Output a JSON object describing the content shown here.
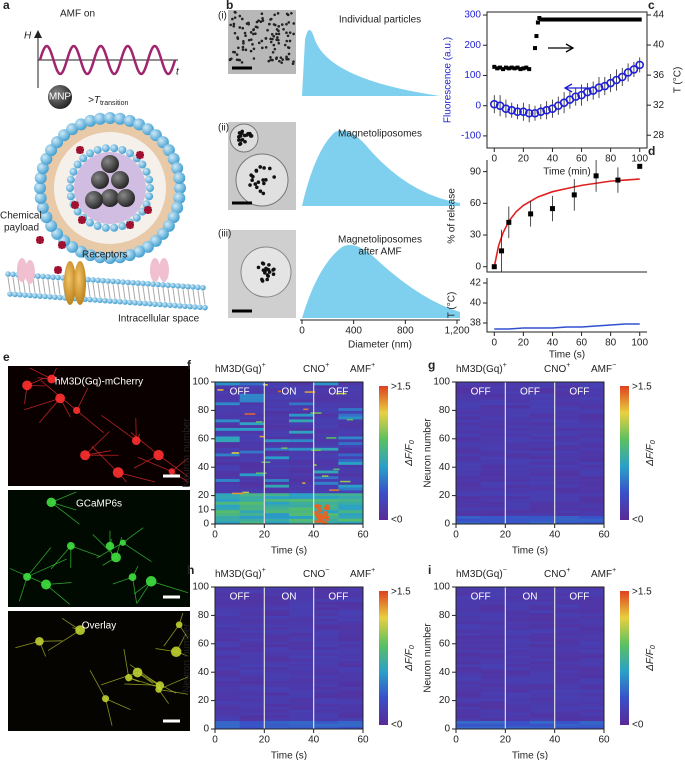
{
  "a": {
    "label": "a",
    "amf": "AMF on",
    "h": "H",
    "t": "t",
    "mnp": "MNP",
    "transition": ">T",
    "transition_sub": "transition",
    "payload": [
      "Chemical",
      "payload"
    ],
    "receptors": "Receptors",
    "intracellular": "Intracellular space"
  },
  "b": {
    "label": "b",
    "xlabel": "Diameter (nm)",
    "xlim": [
      0,
      1200
    ],
    "xticks": [
      0,
      400,
      800,
      {
        "value": 1200,
        "label": "1,200"
      }
    ],
    "rows": [
      {
        "index": "(i)",
        "caption": [
          "Individual particles"
        ]
      },
      {
        "index": "(ii)",
        "caption": [
          "Magnetoliposomes"
        ]
      },
      {
        "index": "(iii)",
        "caption": [
          "Magnetoliposomes",
          "after AMF"
        ]
      }
    ]
  },
  "c": {
    "label": "c",
    "type": "scatter",
    "xlabel": "Time (min)",
    "ylabel": "Fluorescence (a.u.)",
    "y2label": "T (°C)",
    "xlim": [
      -5,
      105
    ],
    "xticks": [
      0,
      20,
      40,
      60,
      80,
      100
    ],
    "ylim": [
      -140,
      310
    ],
    "yticks": [
      -100,
      0,
      100,
      200,
      300
    ],
    "y2lim": [
      26.3,
      44.4
    ],
    "y2ticks": [
      28,
      32,
      36,
      40,
      44
    ],
    "fluorescence": {
      "color": "#1f1fd6",
      "x": [
        0,
        4,
        8,
        12,
        16,
        20,
        24,
        28,
        32,
        36,
        40,
        44,
        48,
        52,
        56,
        60,
        64,
        68,
        72,
        76,
        80,
        84,
        88,
        92,
        96,
        100
      ],
      "values": [
        5,
        0,
        -10,
        -15,
        -20,
        -20,
        -25,
        -25,
        -20,
        -15,
        -10,
        0,
        10,
        20,
        30,
        35,
        45,
        50,
        60,
        65,
        75,
        85,
        95,
        110,
        120,
        135
      ],
      "errors": [
        30,
        35,
        30,
        25,
        25,
        30,
        30,
        25,
        25,
        30,
        30,
        30,
        35,
        30,
        30,
        35,
        30,
        30,
        35,
        30,
        30,
        35,
        30,
        30,
        25,
        25
      ]
    },
    "temperature": {
      "color": "#000000",
      "axis": "y2",
      "x": [
        0,
        2,
        4,
        6,
        8,
        10,
        12,
        14,
        16,
        18,
        20,
        22,
        24,
        28,
        29,
        30,
        31,
        32,
        34,
        36,
        38,
        40,
        42,
        44,
        46,
        48,
        50,
        52,
        54,
        56,
        58,
        60,
        62,
        64,
        66,
        68,
        70,
        72,
        74,
        76,
        78,
        80,
        82,
        84,
        86,
        88,
        90,
        92,
        94,
        96,
        98,
        100
      ],
      "values": [
        37.1,
        36.9,
        37.0,
        36.8,
        37.0,
        36.9,
        37.0,
        36.9,
        37.0,
        36.8,
        36.9,
        37.0,
        36.8,
        39.6,
        41.2,
        43.0,
        43.6,
        43.4,
        43.4,
        43.4,
        43.4,
        43.4,
        43.4,
        43.4,
        43.4,
        43.4,
        43.4,
        43.4,
        43.4,
        43.4,
        43.4,
        43.4,
        43.4,
        43.4,
        43.4,
        43.4,
        43.4,
        43.4,
        43.4,
        43.4,
        43.4,
        43.4,
        43.4,
        43.4,
        43.4,
        43.4,
        43.4,
        43.4,
        43.4,
        43.4,
        43.4,
        43.4
      ]
    }
  },
  "d": {
    "label": "d",
    "type": "scatter",
    "xlabel": "Time (s)",
    "xlim": [
      -5,
      105
    ],
    "xticks": [
      0,
      20,
      40,
      60,
      80,
      100
    ],
    "release": {
      "ylabel": "% of release",
      "ylim": [
        -5,
        101
      ],
      "yticks": [
        0,
        30,
        60,
        90
      ],
      "x": [
        0,
        5,
        10,
        25,
        40,
        55,
        70,
        85,
        100
      ],
      "values": [
        0,
        15,
        42,
        50,
        55,
        68,
        86,
        82,
        95
      ],
      "errors": [
        0,
        20,
        15,
        12,
        12,
        15,
        15,
        12,
        0
      ],
      "color": "#000000",
      "fit_color": "#e02020",
      "fit_x": [
        0,
        3,
        6,
        10,
        15,
        20,
        30,
        40,
        50,
        60,
        70,
        80,
        90,
        100
      ],
      "fit": [
        0,
        20,
        32,
        43,
        52,
        58,
        66,
        71,
        74,
        77,
        79,
        81,
        82,
        83
      ]
    },
    "temperature": {
      "ylabel": "T (°C)",
      "ylim": [
        37.1,
        42.5
      ],
      "yticks": [
        38,
        40,
        42
      ],
      "color": "#3050d0",
      "x": [
        0,
        10,
        20,
        30,
        40,
        50,
        60,
        70,
        80,
        90,
        100
      ],
      "values": [
        37.4,
        37.4,
        37.5,
        37.5,
        37.5,
        37.6,
        37.6,
        37.7,
        37.8,
        37.9,
        37.9
      ]
    }
  },
  "e": {
    "label": "e",
    "images": [
      "hM3D(Gq)-mCherry",
      "GCaMP6s",
      "Overlay"
    ]
  },
  "heatmaps": [
    {
      "label": "f",
      "conditions": [
        {
          "text": "hM3D(Gq)",
          "sup": "+"
        },
        {
          "text": "CNO",
          "sup": "+"
        },
        {
          "text": "AMF",
          "sup": "+"
        }
      ],
      "states": [
        "OFF",
        "ON",
        "OFF"
      ],
      "boundaries": [
        20,
        40
      ],
      "xlabel": "Time (s)",
      "ylabel": "Neuron number",
      "xlim": [
        0,
        60
      ],
      "xticks": [
        0,
        20,
        40,
        60
      ],
      "ylim": [
        0,
        100
      ],
      "yticks": [
        0,
        10,
        20,
        40,
        60,
        80,
        100
      ],
      "colorbar": {
        "max": ">1.5",
        "min": "<0",
        "label": "ΔF/F",
        "label_sub": "0"
      }
    },
    {
      "label": "g",
      "conditions": [
        {
          "text": "hM3D(Gq)",
          "sup": "+"
        },
        {
          "text": "CNO",
          "sup": "+"
        },
        {
          "text": "AMF",
          "sup": "−"
        }
      ],
      "states": [
        "OFF",
        "OFF",
        "OFF"
      ],
      "boundaries": [
        20,
        40
      ],
      "xlabel": "Time (s)",
      "ylabel": "Neuron number",
      "xlim": [
        0,
        60
      ],
      "xticks": [
        0,
        20,
        40,
        60
      ],
      "ylim": [
        0,
        100
      ],
      "yticks": [
        0,
        20,
        40,
        60,
        80,
        100
      ],
      "colorbar": {
        "max": ">1.5",
        "min": "<0",
        "label": "ΔF/F",
        "label_sub": "0"
      }
    },
    {
      "label": "h",
      "conditions": [
        {
          "text": "hM3D(Gq)",
          "sup": "+"
        },
        {
          "text": "CNO",
          "sup": "−"
        },
        {
          "text": "AMF",
          "sup": "+"
        }
      ],
      "states": [
        "OFF",
        "ON",
        "OFF"
      ],
      "boundaries": [
        20,
        40
      ],
      "xlabel": "Time (s)",
      "ylabel": "Neuron number",
      "xlim": [
        0,
        60
      ],
      "xticks": [
        0,
        20,
        40,
        60
      ],
      "ylim": [
        0,
        100
      ],
      "yticks": [
        0,
        20,
        40,
        60,
        80,
        100
      ],
      "colorbar": {
        "max": ">1.5",
        "min": "<0",
        "label": "ΔF/F",
        "label_sub": "0"
      }
    },
    {
      "label": "i",
      "conditions": [
        {
          "text": "hM3D(Gq)",
          "sup": "−"
        },
        {
          "text": "CNO",
          "sup": "+"
        },
        {
          "text": "AMF",
          "sup": "+"
        }
      ],
      "states": [
        "OFF",
        "ON",
        "OFF"
      ],
      "boundaries": [
        20,
        40
      ],
      "xlabel": "Time (s)",
      "ylabel": "Neuron number",
      "xlim": [
        0,
        60
      ],
      "xticks": [
        0,
        20,
        40,
        60
      ],
      "ylim": [
        0,
        100
      ],
      "yticks": [
        0,
        20,
        40,
        60,
        80,
        100
      ],
      "colorbar": {
        "max": ">1.5",
        "min": "<0",
        "label": "ΔF/F",
        "label_sub": "0"
      }
    }
  ]
}
